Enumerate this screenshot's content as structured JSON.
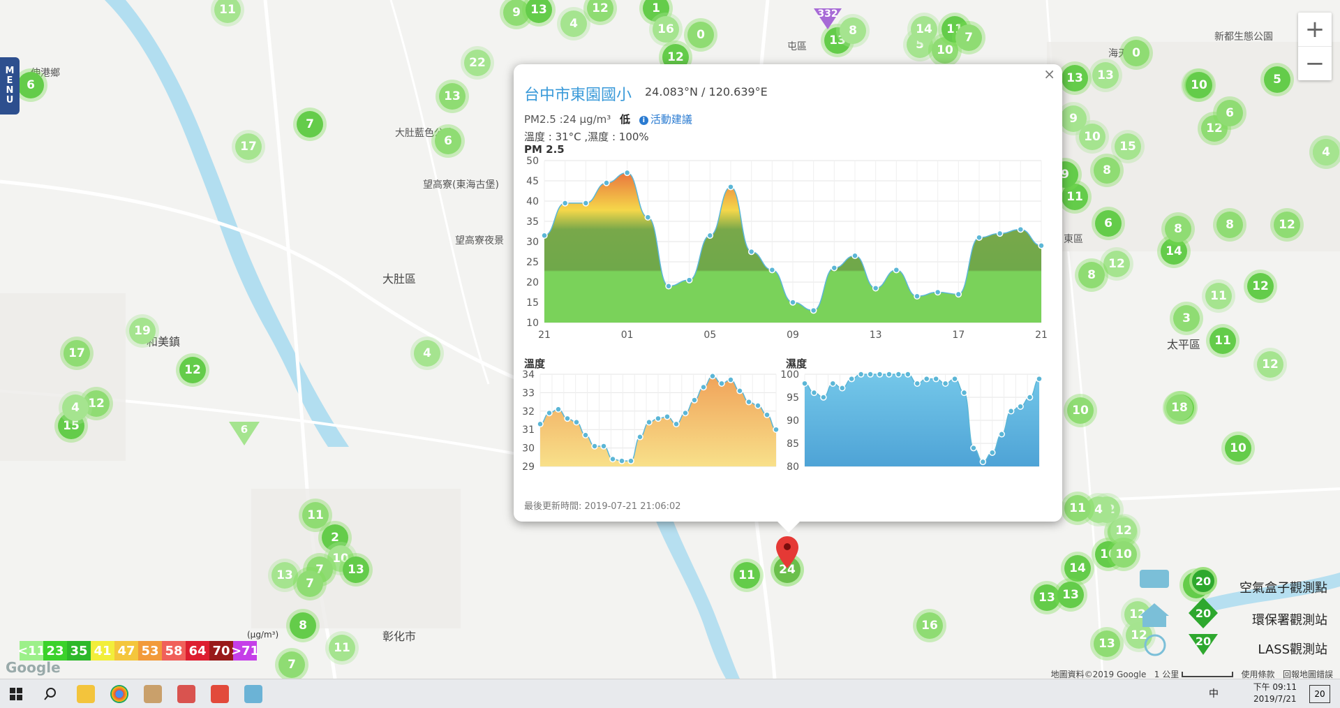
{
  "menu": {
    "label": "MENU",
    "letters": [
      "M",
      "E",
      "N",
      "U"
    ]
  },
  "zoom": {
    "in": "+",
    "out": "−"
  },
  "map_labels": [
    {
      "name": "dadu-district",
      "text": "大肚區"
    },
    {
      "name": "wanggao-liao",
      "text": "望高寮(東海古堡)"
    },
    {
      "name": "wanggao-liao-2",
      "text": "望高寮夜景"
    },
    {
      "name": "hemei-town",
      "text": "和美鎮"
    },
    {
      "name": "shengang",
      "text": "伸港鄉"
    },
    {
      "name": "changhua-city",
      "text": "彰化市"
    },
    {
      "name": "taiping-district",
      "text": "太平區"
    },
    {
      "name": "dadu-mountain",
      "text": "大肚藍色公路"
    },
    {
      "name": "tuntuan",
      "text": "屯區"
    },
    {
      "name": "east-district",
      "text": "東區"
    },
    {
      "name": "xinshe",
      "text": "新都生態公園"
    },
    {
      "name": "haitian",
      "text": "海天橋"
    }
  ],
  "popup": {
    "close": "×",
    "station_name": "台中市東園國小",
    "coordinates": "24.083°N / 120.639°E",
    "pm_text": "PM2.5 :24 μg/m³",
    "pm_level": "低",
    "advice_icon": "info-icon",
    "advice": "活動建議",
    "temp_humidity": "溫度 : 31°C ,濕度 : 100%",
    "pm_chart_title": "PM 2.5",
    "temp_chart_title": "溫度",
    "hum_chart_title": "濕度",
    "updated": "最後更新時間: 2019-07-21 21:06:02"
  },
  "chart_data": [
    {
      "type": "area",
      "title": "PM 2.5",
      "x_ticks": [
        "21",
        "01",
        "05",
        "09",
        "13",
        "17",
        "21"
      ],
      "ylim": [
        10,
        50
      ],
      "y_ticks": [
        10,
        15,
        20,
        25,
        30,
        35,
        40,
        45,
        50
      ],
      "series": [
        {
          "values": [
            31.5,
            39.5,
            39.5,
            44.5,
            47,
            36,
            19,
            20.5,
            31.5,
            43.5,
            27.5,
            23,
            15,
            13,
            23.5,
            26.5,
            18.5,
            23,
            16.5,
            17.5,
            17,
            31,
            32,
            33,
            29
          ]
        }
      ],
      "grid": true
    },
    {
      "type": "area",
      "title": "溫度",
      "ylim": [
        29,
        34
      ],
      "y_ticks": [
        29,
        30,
        31,
        32,
        33,
        34
      ],
      "series": [
        {
          "values": [
            31.3,
            31.9,
            32.1,
            31.6,
            31.4,
            30.7,
            30.1,
            30.1,
            29.4,
            29.3,
            29.3,
            30.6,
            31.4,
            31.6,
            31.7,
            31.3,
            31.9,
            32.6,
            33.3,
            33.9,
            33.5,
            33.7,
            33.1,
            32.5,
            32.3,
            31.8,
            31.0
          ]
        }
      ],
      "grid": true
    },
    {
      "type": "area",
      "title": "濕度",
      "ylim": [
        80,
        100
      ],
      "y_ticks": [
        80,
        85,
        90,
        95,
        100
      ],
      "series": [
        {
          "values": [
            98,
            96,
            95,
            98,
            97,
            99,
            100,
            100,
            100,
            100,
            100,
            100,
            98,
            99,
            99,
            98,
            99,
            96,
            84,
            81,
            83,
            87,
            92,
            93,
            95,
            99
          ]
        }
      ],
      "grid": true
    }
  ],
  "markers": [
    {
      "v": "11"
    },
    {
      "v": "9"
    },
    {
      "v": "13"
    },
    {
      "v": "4"
    },
    {
      "v": "12"
    },
    {
      "v": "1"
    },
    {
      "v": "16"
    },
    {
      "v": "0"
    },
    {
      "v": "12"
    },
    {
      "v": "22"
    },
    {
      "v": "13"
    },
    {
      "v": "7"
    },
    {
      "v": "17"
    },
    {
      "v": "6"
    },
    {
      "v": "6"
    },
    {
      "v": "19"
    },
    {
      "v": "17"
    },
    {
      "v": "12"
    },
    {
      "v": "4"
    },
    {
      "v": "12"
    },
    {
      "v": "15"
    },
    {
      "v": "4"
    },
    {
      "v": "11"
    },
    {
      "v": "2"
    },
    {
      "v": "10"
    },
    {
      "v": "7"
    },
    {
      "v": "13"
    },
    {
      "v": "13"
    },
    {
      "v": "7"
    },
    {
      "v": "8"
    },
    {
      "v": "11"
    },
    {
      "v": "7"
    },
    {
      "v": "11"
    },
    {
      "v": "24"
    },
    {
      "v": "16"
    },
    {
      "v": "13"
    },
    {
      "v": "12"
    },
    {
      "v": "13"
    },
    {
      "v": "14"
    },
    {
      "v": "12"
    },
    {
      "v": "10"
    },
    {
      "v": "8"
    },
    {
      "v": "15"
    },
    {
      "v": "8"
    },
    {
      "v": "11"
    },
    {
      "v": "10"
    },
    {
      "v": "12"
    },
    {
      "v": "14"
    },
    {
      "v": "12"
    },
    {
      "v": "8"
    },
    {
      "v": "12"
    },
    {
      "v": "11"
    },
    {
      "v": "3"
    },
    {
      "v": "11"
    },
    {
      "v": "12"
    },
    {
      "v": "18"
    },
    {
      "v": "10"
    },
    {
      "v": "4"
    },
    {
      "v": "11"
    },
    {
      "v": "10"
    },
    {
      "v": "12"
    },
    {
      "v": "10"
    },
    {
      "v": "13"
    },
    {
      "v": "12"
    },
    {
      "v": "13"
    },
    {
      "v": "8"
    },
    {
      "v": "9"
    },
    {
      "v": "6"
    },
    {
      "v": "9"
    },
    {
      "v": "5"
    },
    {
      "v": "10"
    },
    {
      "v": "11"
    },
    {
      "v": "14"
    },
    {
      "v": "8"
    },
    {
      "v": "6"
    },
    {
      "v": "3"
    },
    {
      "v": "0"
    },
    {
      "v": "10"
    },
    {
      "v": "6"
    },
    {
      "v": "12"
    },
    {
      "v": "5"
    },
    {
      "v": "4"
    },
    {
      "v": "8"
    },
    {
      "v": "13"
    },
    {
      "v": "13"
    },
    {
      "v": "7"
    },
    {
      "v": "13"
    },
    {
      "v": "8"
    }
  ],
  "triangle_markers": [
    {
      "v": "332"
    },
    {
      "v": "6"
    }
  ],
  "scale": {
    "unit": "(μg/m³)",
    "items": [
      {
        "label": "<11",
        "color": "#9cf08a"
      },
      {
        "label": "23",
        "color": "#3bd22b"
      },
      {
        "label": "35",
        "color": "#2db82a"
      },
      {
        "label": "41",
        "color": "#f2ee3a"
      },
      {
        "label": "47",
        "color": "#f4c63c"
      },
      {
        "label": "53",
        "color": "#f29a3a"
      },
      {
        "label": "58",
        "color": "#f0605a"
      },
      {
        "label": "64",
        "color": "#dd1e30"
      },
      {
        "label": "70",
        "color": "#991a1a"
      },
      {
        "label": ">71",
        "color": "#c53ee8"
      }
    ]
  },
  "legend": {
    "airbox": "空氣盒子觀測點",
    "epa": "環保署觀測站",
    "lass": "LASS觀測站",
    "sample": "20"
  },
  "footer": {
    "copyright": "地圖資料©2019 Google",
    "scale": "1 公里",
    "terms": "使用條款",
    "report": "回報地圖錯誤"
  },
  "google_logo": "Google",
  "taskbar": {
    "time": "下午 09:11",
    "date": "2019/7/21",
    "ime": "中",
    "notif": "20"
  }
}
